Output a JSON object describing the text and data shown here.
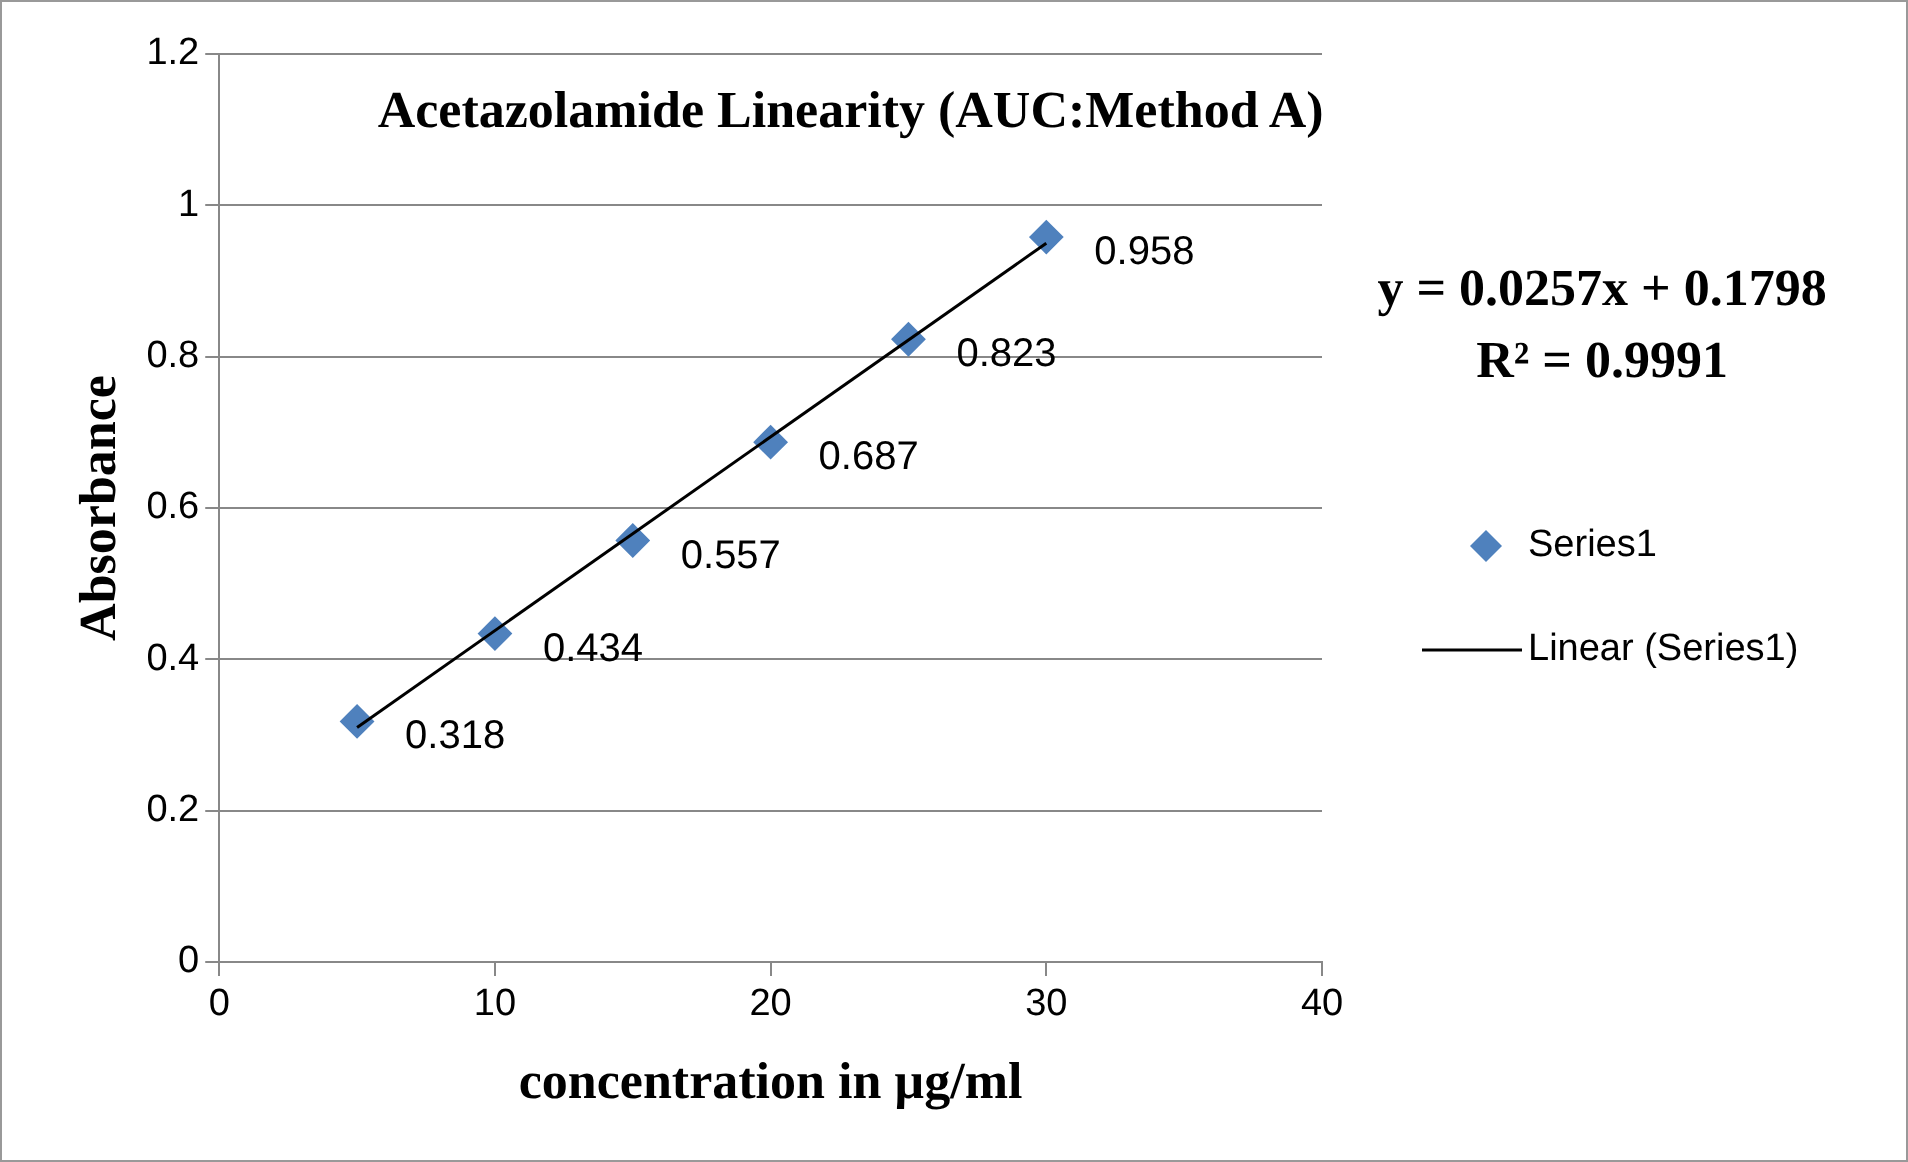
{
  "chart_data": {
    "type": "scatter",
    "title": "Acetazolamide Linearity (AUC:Method A)",
    "xlabel": "concentration in µg/ml",
    "ylabel": "Absorbance",
    "x": [
      5,
      10,
      15,
      20,
      25,
      30
    ],
    "series": [
      {
        "name": "Series1",
        "color": "#4f81bd",
        "values": [
          0.318,
          0.434,
          0.557,
          0.687,
          0.823,
          0.958
        ],
        "value_labels": [
          "0.318",
          "0.434",
          "0.557",
          "0.687",
          "0.823",
          "0.958"
        ],
        "marker": "diamond"
      },
      {
        "name": "Linear (Series1)",
        "type": "line",
        "color": "#000000",
        "x": [
          5,
          30
        ],
        "values": [
          0.31,
          0.95
        ],
        "marker": "none"
      }
    ],
    "xlim": [
      0,
      40
    ],
    "xticks": [
      0,
      10,
      20,
      30,
      40
    ],
    "ylim": [
      0,
      1.2
    ],
    "yticks": [
      0,
      0.2,
      0.4,
      0.6,
      0.8,
      1,
      1.2
    ],
    "grid": "y",
    "legend": "right",
    "annotations": [
      "y = 0.0257x + 0.1798",
      "R² = 0.9991"
    ]
  }
}
